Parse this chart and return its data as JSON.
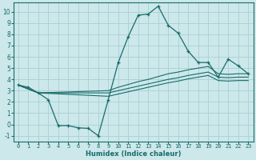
{
  "xlabel": "Humidex (Indice chaleur)",
  "background_color": "#cce8ea",
  "grid_color": "#aad0d4",
  "line_color": "#1a6b6b",
  "xlim": [
    -0.5,
    23.5
  ],
  "ylim": [
    -1.5,
    10.8
  ],
  "xticks": [
    0,
    1,
    2,
    3,
    4,
    5,
    6,
    7,
    8,
    9,
    10,
    11,
    12,
    13,
    14,
    15,
    16,
    17,
    18,
    19,
    20,
    21,
    22,
    23
  ],
  "yticks": [
    -1,
    0,
    1,
    2,
    3,
    4,
    5,
    6,
    7,
    8,
    9,
    10
  ],
  "line1_main": {
    "x": [
      0,
      1,
      2,
      3,
      4,
      5,
      6,
      7,
      8,
      9,
      10,
      11,
      12,
      13,
      14,
      15,
      16,
      17,
      18,
      19,
      20,
      21,
      22,
      23
    ],
    "y": [
      3.5,
      3.3,
      2.8,
      2.2,
      -0.1,
      -0.1,
      -0.3,
      -0.35,
      -1.0,
      2.2,
      5.5,
      7.8,
      9.7,
      9.8,
      10.5,
      8.8,
      8.1,
      6.5,
      5.5,
      5.5,
      4.2,
      5.8,
      5.2,
      4.5
    ]
  },
  "line2": {
    "x": [
      0,
      2,
      9,
      10,
      11,
      12,
      13,
      14,
      15,
      16,
      17,
      18,
      19,
      20,
      21,
      22,
      23
    ],
    "y": [
      3.5,
      2.8,
      3.0,
      3.3,
      3.55,
      3.8,
      4.0,
      4.25,
      4.5,
      4.65,
      4.85,
      5.0,
      5.15,
      4.5,
      4.45,
      4.5,
      4.5
    ]
  },
  "line3": {
    "x": [
      0,
      2,
      9,
      10,
      11,
      12,
      13,
      14,
      15,
      16,
      17,
      18,
      19,
      20,
      21,
      22,
      23
    ],
    "y": [
      3.5,
      2.8,
      2.8,
      3.0,
      3.2,
      3.4,
      3.6,
      3.8,
      4.0,
      4.15,
      4.35,
      4.5,
      4.65,
      4.2,
      4.15,
      4.2,
      4.2
    ]
  },
  "line4": {
    "x": [
      0,
      2,
      9,
      10,
      11,
      12,
      13,
      14,
      15,
      16,
      17,
      18,
      19,
      20,
      21,
      22,
      23
    ],
    "y": [
      3.5,
      2.8,
      2.5,
      2.7,
      2.9,
      3.1,
      3.3,
      3.5,
      3.7,
      3.85,
      4.05,
      4.2,
      4.35,
      3.9,
      3.85,
      3.9,
      3.9
    ]
  }
}
